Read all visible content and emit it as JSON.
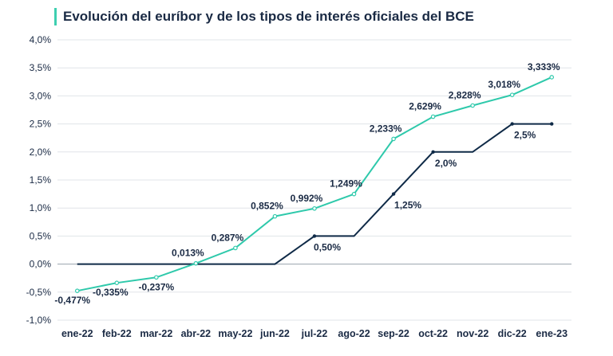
{
  "colors": {
    "euribor": "#2ec9ab",
    "bce": "#0f2a47",
    "grid": "#e0e4e8",
    "text": "#1a2a44",
    "title_accent": "#3ecfb0"
  },
  "chart_data": {
    "type": "line",
    "title": "Evolución del euríbor y de los tipos de interés oficiales del BCE",
    "categories": [
      "ene-22",
      "feb-22",
      "mar-22",
      "abr-22",
      "may-22",
      "jun-22",
      "jul-22",
      "ago-22",
      "sep-22",
      "oct-22",
      "nov-22",
      "dic-22",
      "ene-23"
    ],
    "ylim": [
      -1.0,
      4.0
    ],
    "yticks": [
      -1.0,
      -0.5,
      0.0,
      0.5,
      1.0,
      1.5,
      2.0,
      2.5,
      3.0,
      3.5,
      4.0
    ],
    "ytick_labels": [
      "-1,0%",
      "-0,5%",
      "0,0%",
      "0,5%",
      "1,0%",
      "1,5%",
      "2,0%",
      "2,5%",
      "3,0%",
      "3,5%",
      "4,0%"
    ],
    "grid": "horizontal",
    "series": [
      {
        "values": [
          -0.477,
          -0.335,
          -0.237,
          0.013,
          0.287,
          0.852,
          0.992,
          1.249,
          2.233,
          2.629,
          2.828,
          3.018,
          3.333
        ],
        "labels": [
          "-0,477%",
          "-0,335%",
          "-0,237%",
          "0,013%",
          "0,287%",
          "0,852%",
          "0,992%",
          "1,249%",
          "2,233%",
          "2,629%",
          "2,828%",
          "3,018%",
          "3,333%"
        ]
      },
      {
        "values": [
          0,
          0,
          0,
          0,
          0,
          0,
          0.5,
          0.5,
          1.25,
          2.0,
          2.0,
          2.5,
          2.5
        ],
        "point_labels": [
          {
            "index": 6,
            "text": "0,50%"
          },
          {
            "index": 8,
            "text": "1,25%"
          },
          {
            "index": 9,
            "text": "2,0%"
          },
          {
            "index": 11,
            "text": "2,5%"
          }
        ]
      }
    ]
  }
}
